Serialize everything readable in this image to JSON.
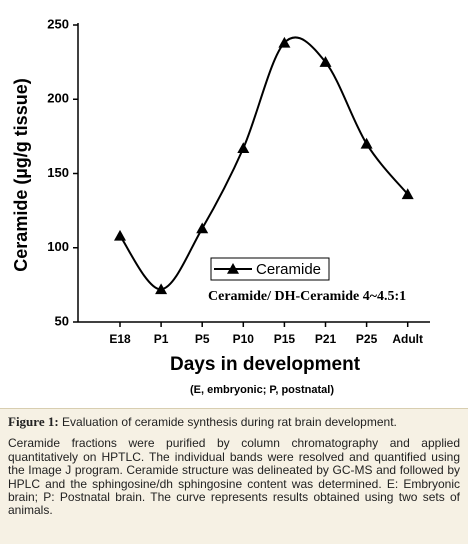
{
  "chart_data": {
    "type": "line",
    "y_label": "Ceramide (µg/g tissue)",
    "x_label": "Days in development",
    "x_note": "(E, embryonic; P, postnatal)",
    "annotation": "Ceramide/ DH-Ceramide 4~4.5:1",
    "categories": [
      "E18",
      "P1",
      "P5",
      "P10",
      "P15",
      "P21",
      "P25",
      "Adult"
    ],
    "series": [
      {
        "name": "Ceramide",
        "color": "#000000",
        "values": [
          108,
          72,
          113,
          167,
          238,
          225,
          170,
          136
        ]
      }
    ],
    "ylim": [
      50,
      250
    ],
    "yticks": [
      50,
      100,
      150,
      200,
      250
    ],
    "grid": false,
    "legend": "center"
  },
  "caption": {
    "label": "Figure 1:",
    "title": "Evaluation of ceramide synthesis during rat brain development.",
    "body": "Ceramide fractions were purified by column chromatography and applied quantitatively on HPTLC. The individual bands were resolved and quantified using the Image J program. Ceramide structure was delineated by GC-MS and followed by HPLC and the sphingosine/dh sphingosine content was determined. E: Embryonic brain; P: Postnatal brain. The curve represents results obtained using two sets of animals."
  }
}
